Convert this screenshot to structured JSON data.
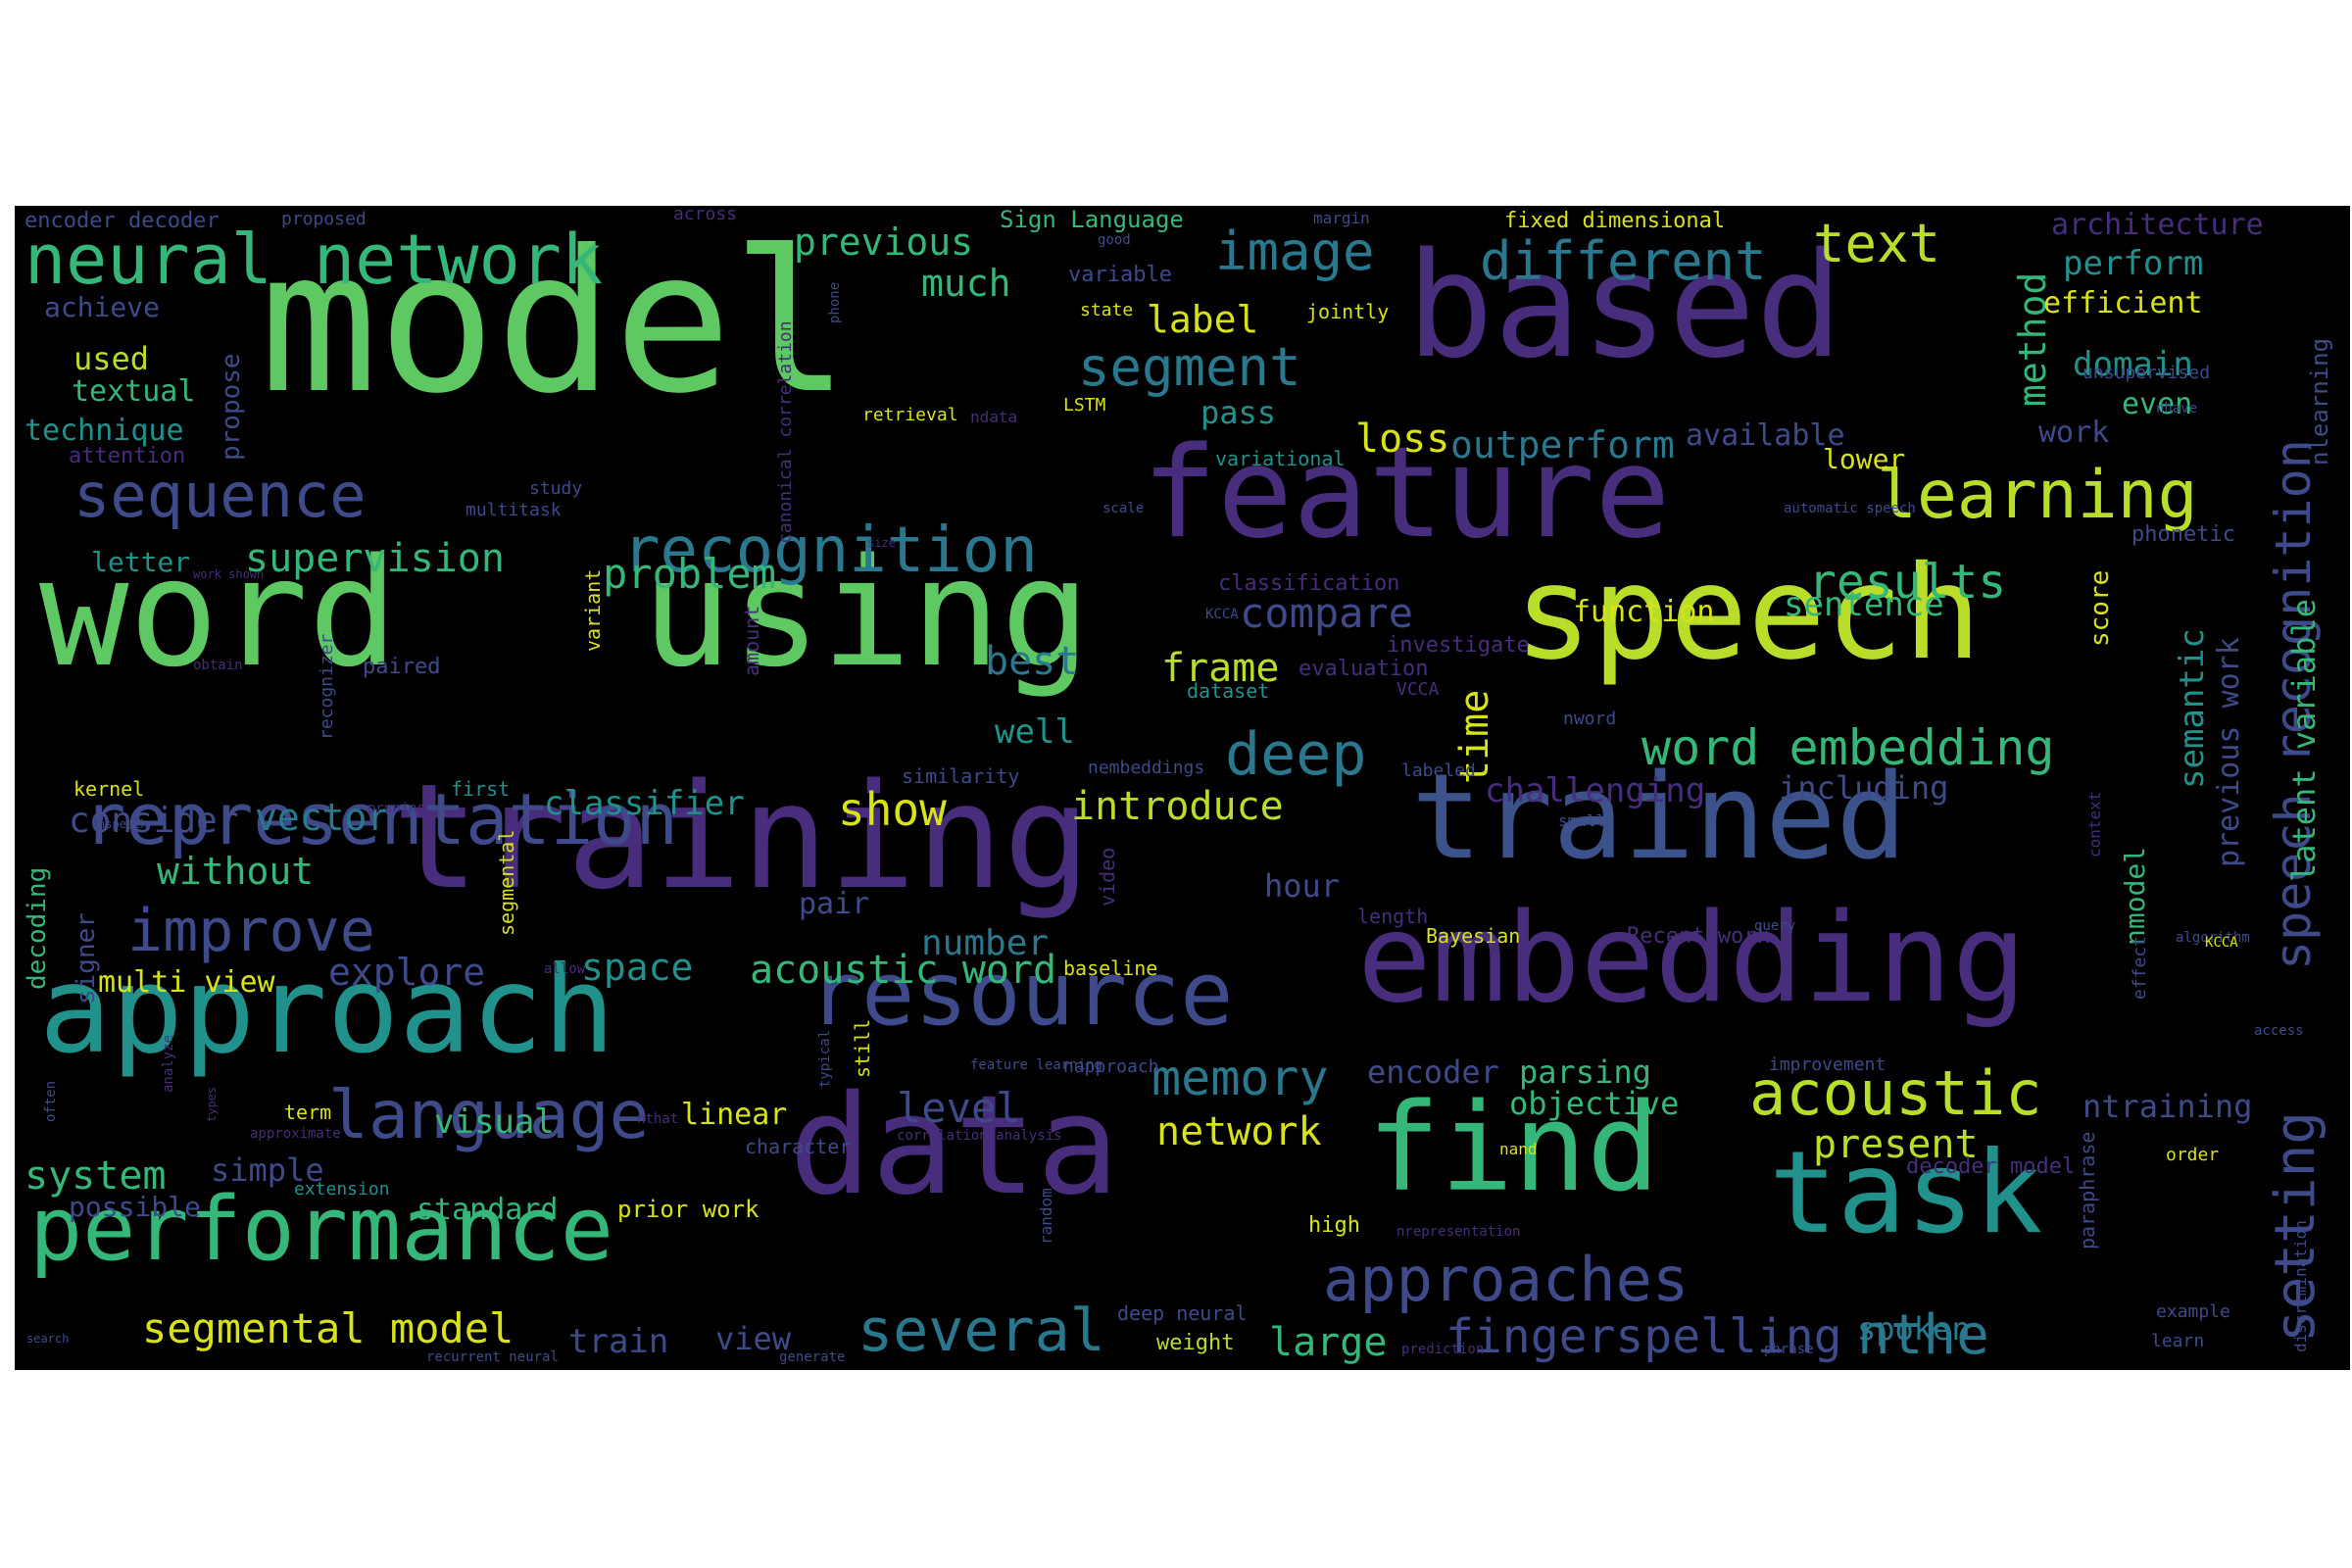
{
  "palette": {
    "green": "#5ec962",
    "lime": "#b8de29",
    "teal": "#21918c",
    "blue": "#3b528b",
    "purple": "#472d7b",
    "dark": "#3e4a89",
    "cyan": "#2a788e",
    "mint": "#35b779",
    "yellow": "#d8e219"
  },
  "words": [
    {
      "text": "model",
      "color": "green"
    },
    {
      "text": "based",
      "color": "purple"
    },
    {
      "text": "feature",
      "color": "purple"
    },
    {
      "text": "speech",
      "color": "lime"
    },
    {
      "text": "word",
      "color": "green"
    },
    {
      "text": "using",
      "color": "green"
    },
    {
      "text": "training",
      "color": "purple"
    },
    {
      "text": "trained",
      "color": "blue"
    },
    {
      "text": "embedding",
      "color": "purple"
    },
    {
      "text": "approach",
      "color": "teal"
    },
    {
      "text": "data",
      "color": "purple"
    },
    {
      "text": "find",
      "color": "mint"
    },
    {
      "text": "task",
      "color": "teal"
    },
    {
      "text": "resource",
      "color": "dark"
    },
    {
      "text": "representation",
      "color": "dark"
    },
    {
      "text": "performance",
      "color": "mint"
    },
    {
      "text": "language",
      "color": "dark"
    },
    {
      "text": "recognition",
      "color": "cyan"
    },
    {
      "text": "neural network",
      "color": "mint"
    },
    {
      "text": "sequence",
      "color": "dark"
    },
    {
      "text": "learning",
      "color": "lime"
    },
    {
      "text": "different",
      "color": "cyan"
    },
    {
      "text": "image",
      "color": "cyan"
    },
    {
      "text": "text",
      "color": "lime"
    },
    {
      "text": "segment",
      "color": "cyan"
    },
    {
      "text": "deep",
      "color": "cyan"
    },
    {
      "text": "acoustic",
      "color": "lime"
    },
    {
      "text": "approaches",
      "color": "dark"
    },
    {
      "text": "several",
      "color": "cyan"
    },
    {
      "text": "improve",
      "color": "dark"
    },
    {
      "text": "results",
      "color": "mint"
    },
    {
      "text": "word embedding",
      "color": "mint"
    },
    {
      "text": "memory",
      "color": "cyan"
    },
    {
      "text": "fingerspelling",
      "color": "dark"
    },
    {
      "text": "nthe",
      "color": "cyan"
    },
    {
      "text": "setting",
      "color": "dark"
    },
    {
      "text": "speech recognition",
      "color": "dark"
    },
    {
      "text": "segmental model",
      "color": "yellow"
    },
    {
      "text": "acoustic word",
      "color": "mint"
    },
    {
      "text": "problem",
      "color": "mint"
    },
    {
      "text": "supervision",
      "color": "mint"
    },
    {
      "text": "previous",
      "color": "mint"
    },
    {
      "text": "much",
      "color": "mint"
    },
    {
      "text": "label",
      "color": "yellow"
    },
    {
      "text": "outperform",
      "color": "cyan"
    },
    {
      "text": "compare",
      "color": "dark"
    },
    {
      "text": "frame",
      "color": "lime"
    },
    {
      "text": "level",
      "color": "dark"
    },
    {
      "text": "present",
      "color": "lime"
    },
    {
      "text": "objective",
      "color": "mint"
    },
    {
      "text": "encoder",
      "color": "dark"
    },
    {
      "text": "parsing",
      "color": "mint"
    },
    {
      "text": "network",
      "color": "yellow"
    },
    {
      "text": "large",
      "color": "mint"
    },
    {
      "text": "spoken",
      "color": "cyan"
    },
    {
      "text": "without",
      "color": "mint"
    },
    {
      "text": "show",
      "color": "yellow"
    },
    {
      "text": "introduce",
      "color": "lime"
    },
    {
      "text": "classifier",
      "color": "teal"
    },
    {
      "text": "vector",
      "color": "cyan"
    },
    {
      "text": "consider",
      "color": "dark"
    },
    {
      "text": "number",
      "color": "cyan"
    },
    {
      "text": "explore",
      "color": "dark"
    },
    {
      "text": "space",
      "color": "teal"
    },
    {
      "text": "multi view",
      "color": "yellow"
    },
    {
      "text": "system",
      "color": "mint"
    },
    {
      "text": "simple",
      "color": "dark"
    },
    {
      "text": "visual",
      "color": "mint"
    },
    {
      "text": "linear",
      "color": "yellow"
    },
    {
      "text": "standard",
      "color": "mint"
    },
    {
      "text": "possible",
      "color": "dark"
    },
    {
      "text": "prior work",
      "color": "yellow"
    },
    {
      "text": "train",
      "color": "dark"
    },
    {
      "text": "view",
      "color": "dark"
    },
    {
      "text": "best",
      "color": "cyan"
    },
    {
      "text": "well",
      "color": "teal"
    },
    {
      "text": "pair",
      "color": "dark"
    },
    {
      "text": "loss",
      "color": "yellow"
    },
    {
      "text": "pass",
      "color": "teal"
    },
    {
      "text": "hour",
      "color": "dark"
    },
    {
      "text": "time",
      "color": "yellow"
    },
    {
      "text": "method",
      "color": "mint"
    },
    {
      "text": "perform",
      "color": "teal"
    },
    {
      "text": "efficient",
      "color": "yellow"
    },
    {
      "text": "domain",
      "color": "teal"
    },
    {
      "text": "even",
      "color": "mint"
    },
    {
      "text": "work",
      "color": "dark"
    },
    {
      "text": "lower",
      "color": "yellow"
    },
    {
      "text": "available",
      "color": "dark"
    },
    {
      "text": "sentence",
      "color": "mint"
    },
    {
      "text": "function",
      "color": "yellow"
    },
    {
      "text": "architecture",
      "color": "purple"
    },
    {
      "text": "semantic",
      "color": "teal"
    },
    {
      "text": "previous work",
      "color": "dark"
    },
    {
      "text": "latent variable",
      "color": "mint"
    },
    {
      "text": "nlearning",
      "color": "dark"
    },
    {
      "text": "challenging",
      "color": "purple"
    },
    {
      "text": "including",
      "color": "dark"
    },
    {
      "text": "ntraining",
      "color": "dark"
    },
    {
      "text": "nmodel",
      "color": "mint"
    },
    {
      "text": "used",
      "color": "lime"
    },
    {
      "text": "textual",
      "color": "mint"
    },
    {
      "text": "technique",
      "color": "teal"
    },
    {
      "text": "achieve",
      "color": "dark"
    },
    {
      "text": "letter",
      "color": "teal"
    },
    {
      "text": "attention",
      "color": "purple"
    },
    {
      "text": "paired",
      "color": "dark"
    },
    {
      "text": "kernel",
      "color": "yellow"
    },
    {
      "text": "signer",
      "color": "dark"
    },
    {
      "text": "decoding",
      "color": "mint"
    },
    {
      "text": "propose",
      "color": "dark"
    },
    {
      "text": "encoder decoder",
      "color": "dark"
    },
    {
      "text": "proposed",
      "color": "dark"
    },
    {
      "text": "across",
      "color": "purple"
    },
    {
      "text": "Sign Language",
      "color": "mint"
    },
    {
      "text": "fixed dimensional",
      "color": "yellow"
    },
    {
      "text": "margin",
      "color": "dark"
    },
    {
      "text": "good",
      "color": "dark"
    },
    {
      "text": "variable",
      "color": "dark"
    },
    {
      "text": "state",
      "color": "yellow"
    },
    {
      "text": "jointly",
      "color": "yellow"
    },
    {
      "text": "canonical correlation",
      "color": "purple"
    },
    {
      "text": "phone",
      "color": "dark"
    },
    {
      "text": "retrieval",
      "color": "yellow"
    },
    {
      "text": "ndata",
      "color": "purple"
    },
    {
      "text": "LSTM",
      "color": "yellow"
    },
    {
      "text": "study",
      "color": "dark"
    },
    {
      "text": "multitask",
      "color": "dark"
    },
    {
      "text": "variational",
      "color": "teal"
    },
    {
      "text": "unsupervised",
      "color": "dark"
    },
    {
      "text": "nhave",
      "color": "dark"
    },
    {
      "text": "scale",
      "color": "dark"
    },
    {
      "text": "automatic speech",
      "color": "dark"
    },
    {
      "text": "phonetic",
      "color": "dark"
    },
    {
      "text": "score",
      "color": "yellow"
    },
    {
      "text": "classification",
      "color": "purple"
    },
    {
      "text": "investigate",
      "color": "purple"
    },
    {
      "text": "evaluation",
      "color": "purple"
    },
    {
      "text": "VCCA",
      "color": "purple"
    },
    {
      "text": "KCCA",
      "color": "dark"
    },
    {
      "text": "dataset",
      "color": "teal"
    },
    {
      "text": "variant",
      "color": "yellow"
    },
    {
      "text": "recognizer",
      "color": "dark"
    },
    {
      "text": "amount",
      "color": "purple"
    },
    {
      "text": "nword",
      "color": "dark"
    },
    {
      "text": "similarity",
      "color": "dark"
    },
    {
      "text": "nembeddings",
      "color": "dark"
    },
    {
      "text": "labeled",
      "color": "dark"
    },
    {
      "text": "first",
      "color": "teal"
    },
    {
      "text": "pruning",
      "color": "purple"
    },
    {
      "text": "video",
      "color": "purple"
    },
    {
      "text": "segmental",
      "color": "yellow"
    },
    {
      "text": "small",
      "color": "dark"
    },
    {
      "text": "context",
      "color": "purple"
    },
    {
      "text": "Bayesian",
      "color": "yellow"
    },
    {
      "text": "Recent work",
      "color": "purple"
    },
    {
      "text": "length",
      "color": "purple"
    },
    {
      "text": "query",
      "color": "dark"
    },
    {
      "text": "algorithm",
      "color": "dark"
    },
    {
      "text": "effect",
      "color": "dark"
    },
    {
      "text": "KCCA",
      "color": "yellow"
    },
    {
      "text": "baseline",
      "color": "yellow"
    },
    {
      "text": "allow",
      "color": "purple"
    },
    {
      "text": "access",
      "color": "dark"
    },
    {
      "text": "napproach",
      "color": "dark"
    },
    {
      "text": "feature learning",
      "color": "dark"
    },
    {
      "text": "still",
      "color": "yellow"
    },
    {
      "text": "typical",
      "color": "dark"
    },
    {
      "text": "improvement",
      "color": "dark"
    },
    {
      "text": "paraphrase",
      "color": "dark"
    },
    {
      "text": "decoder model",
      "color": "purple"
    },
    {
      "text": "order",
      "color": "yellow"
    },
    {
      "text": "term",
      "color": "yellow"
    },
    {
      "text": "analyze",
      "color": "purple"
    },
    {
      "text": "approximate",
      "color": "purple"
    },
    {
      "text": "often",
      "color": "dark"
    },
    {
      "text": "extension",
      "color": "teal"
    },
    {
      "text": "character",
      "color": "dark"
    },
    {
      "text": "nthat",
      "color": "purple"
    },
    {
      "text": "correlation analysis",
      "color": "purple"
    },
    {
      "text": "nand",
      "color": "yellow"
    },
    {
      "text": "types",
      "color": "purple"
    },
    {
      "text": "random",
      "color": "dark"
    },
    {
      "text": "high",
      "color": "yellow"
    },
    {
      "text": "nrepresentation",
      "color": "purple"
    },
    {
      "text": "example",
      "color": "dark"
    },
    {
      "text": "deep neural",
      "color": "dark"
    },
    {
      "text": "weight",
      "color": "lime"
    },
    {
      "text": "prediction",
      "color": "purple"
    },
    {
      "text": "phrase",
      "color": "dark"
    },
    {
      "text": "learn",
      "color": "dark"
    },
    {
      "text": "discrimination",
      "color": "dark"
    },
    {
      "text": "search",
      "color": "dark"
    },
    {
      "text": "recurrent neural",
      "color": "dark"
    },
    {
      "text": "generate",
      "color": "dark"
    },
    {
      "text": "nspeech",
      "color": "dark"
    },
    {
      "text": "size",
      "color": "purple"
    },
    {
      "text": "work shown",
      "color": "purple"
    },
    {
      "text": "obtain",
      "color": "purple"
    }
  ]
}
